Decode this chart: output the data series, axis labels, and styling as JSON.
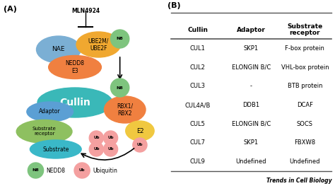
{
  "fig_width": 4.74,
  "fig_height": 2.63,
  "dpi": 100,
  "background": "#ffffff",
  "panel_A_label": "(A)",
  "panel_B_label": "(B)",
  "mln4924_text": "MLN4924",
  "nae_color": "#7bafd4",
  "ube2_color": "#f0a830",
  "nedd8_e3_color": "#f08040",
  "n8_color": "#7ec47e",
  "cullin_color": "#3ab8b8",
  "rbx_color": "#f08040",
  "e2_color": "#f0c840",
  "adaptor_color": "#5b9fd4",
  "substrate_receptor_color": "#8ec060",
  "substrate_color": "#3ab8c8",
  "ub_color": "#f4a0a0",
  "table_headers": [
    "Cullin",
    "Adaptor",
    "Substrate\nreceptor"
  ],
  "table_rows": [
    [
      "CUL1",
      "SKP1",
      "F-box protein"
    ],
    [
      "CUL2",
      "ELONGIN B/C",
      "VHL-box protein"
    ],
    [
      "CUL3",
      "-",
      "BTB protein"
    ],
    [
      "CUL4A/B",
      "DDB1",
      "DCAF"
    ],
    [
      "CUL5",
      "ELONGIN B/C",
      "SOCS"
    ],
    [
      "CUL7",
      "SKP1",
      "FBXW8"
    ],
    [
      "CUL9",
      "Undefined",
      "Undefined"
    ]
  ],
  "trends_text": "Trends in Cell Biology"
}
